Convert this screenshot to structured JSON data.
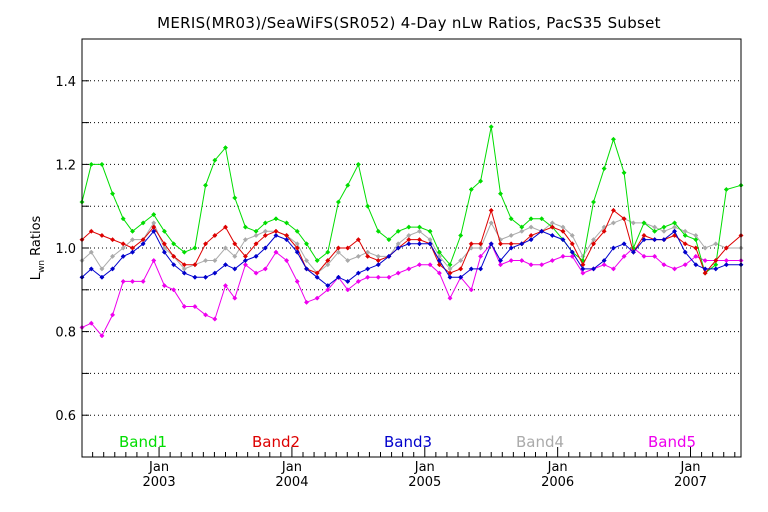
{
  "chart_data": {
    "type": "line",
    "title": "MERIS(MR03)/SeaWiFS(SR052) 4-Day nLw Ratios, PacS35 Subset",
    "ylabel_main": "L",
    "ylabel_sub": "wn",
    "ylabel_rest": " Ratios",
    "xlim": [
      2002.42,
      2007.38
    ],
    "ylim": [
      0.5,
      1.5
    ],
    "yticks": [
      {
        "value": 0.6,
        "label": "0.6"
      },
      {
        "value": 0.8,
        "label": "0.8"
      },
      {
        "value": 1.0,
        "label": "1.0"
      },
      {
        "value": 1.2,
        "label": "1.2"
      },
      {
        "value": 1.4,
        "label": "1.4"
      }
    ],
    "grid_y": [
      0.6,
      0.7,
      0.8,
      0.9,
      1.0,
      1.1,
      1.2,
      1.3,
      1.4
    ],
    "xticks": [
      {
        "value": 2003.0,
        "month": "Jan",
        "year": "2003"
      },
      {
        "value": 2004.0,
        "month": "Jan",
        "year": "2004"
      },
      {
        "value": 2005.0,
        "month": "Jan",
        "year": "2005"
      },
      {
        "value": 2006.0,
        "month": "Jan",
        "year": "2006"
      },
      {
        "value": 2007.0,
        "month": "Jan",
        "year": "2007"
      }
    ],
    "x": [
      2002.42,
      2002.49,
      2002.57,
      2002.65,
      2002.73,
      2002.8,
      2002.88,
      2002.96,
      2003.04,
      2003.11,
      2003.19,
      2003.27,
      2003.35,
      2003.42,
      2003.5,
      2003.57,
      2003.65,
      2003.73,
      2003.8,
      2003.88,
      2003.96,
      2004.04,
      2004.11,
      2004.19,
      2004.27,
      2004.35,
      2004.42,
      2004.5,
      2004.57,
      2004.65,
      2004.73,
      2004.8,
      2004.88,
      2004.96,
      2005.04,
      2005.11,
      2005.19,
      2005.27,
      2005.35,
      2005.42,
      2005.5,
      2005.57,
      2005.65,
      2005.73,
      2005.8,
      2005.88,
      2005.96,
      2006.04,
      2006.11,
      2006.19,
      2006.27,
      2006.35,
      2006.42,
      2006.5,
      2006.57,
      2006.65,
      2006.73,
      2006.8,
      2006.88,
      2006.96,
      2007.04,
      2007.11,
      2007.19,
      2007.27,
      2007.38
    ],
    "series": [
      {
        "name": "Band1",
        "color": "#00dd00",
        "values": [
          1.11,
          1.2,
          1.2,
          1.13,
          1.07,
          1.04,
          1.06,
          1.08,
          1.04,
          1.01,
          0.99,
          1.0,
          1.15,
          1.21,
          1.24,
          1.12,
          1.05,
          1.04,
          1.06,
          1.07,
          1.06,
          1.04,
          1.01,
          0.97,
          0.99,
          1.11,
          1.15,
          1.2,
          1.1,
          1.04,
          1.02,
          1.04,
          1.05,
          1.05,
          1.04,
          0.99,
          0.96,
          1.03,
          1.14,
          1.16,
          1.29,
          1.13,
          1.07,
          1.05,
          1.07,
          1.07,
          1.05,
          1.02,
          0.99,
          0.97,
          1.11,
          1.19,
          1.26,
          1.18,
          1.0,
          1.06,
          1.04,
          1.05,
          1.06,
          1.03,
          1.02,
          0.94,
          0.96,
          1.14,
          1.15
        ]
      },
      {
        "name": "Band2",
        "color": "#dd0000",
        "values": [
          1.02,
          1.04,
          1.03,
          1.02,
          1.01,
          1.0,
          1.02,
          1.05,
          1.01,
          0.98,
          0.96,
          0.96,
          1.01,
          1.03,
          1.05,
          1.01,
          0.98,
          1.01,
          1.03,
          1.04,
          1.03,
          1.0,
          0.95,
          0.94,
          0.97,
          1.0,
          1.0,
          1.02,
          0.98,
          0.97,
          0.98,
          1.0,
          1.02,
          1.02,
          1.01,
          0.96,
          0.94,
          0.95,
          1.01,
          1.01,
          1.09,
          1.01,
          1.01,
          1.01,
          1.03,
          1.04,
          1.05,
          1.04,
          1.01,
          0.96,
          1.01,
          1.04,
          1.09,
          1.07,
          0.99,
          1.03,
          1.02,
          1.02,
          1.03,
          1.01,
          1.0,
          0.94,
          0.97,
          1.0,
          1.03
        ]
      },
      {
        "name": "Band3",
        "color": "#0000cc",
        "values": [
          0.93,
          0.95,
          0.93,
          0.95,
          0.98,
          0.99,
          1.01,
          1.04,
          0.99,
          0.96,
          0.94,
          0.93,
          0.93,
          0.94,
          0.96,
          0.95,
          0.97,
          0.98,
          1.0,
          1.03,
          1.02,
          0.99,
          0.95,
          0.93,
          0.91,
          0.93,
          0.92,
          0.94,
          0.95,
          0.96,
          0.98,
          1.0,
          1.01,
          1.01,
          1.01,
          0.97,
          0.93,
          0.93,
          0.95,
          0.95,
          1.01,
          0.97,
          1.0,
          1.01,
          1.02,
          1.04,
          1.03,
          1.02,
          0.99,
          0.95,
          0.95,
          0.97,
          1.0,
          1.01,
          0.99,
          1.02,
          1.02,
          1.02,
          1.04,
          0.99,
          0.96,
          0.95,
          0.95,
          0.96,
          0.96
        ]
      },
      {
        "name": "Band4",
        "color": "#aaaaaa",
        "values": [
          0.97,
          0.99,
          0.95,
          0.98,
          1.0,
          1.02,
          1.02,
          1.06,
          1.0,
          0.98,
          0.95,
          0.96,
          0.97,
          0.97,
          1.0,
          0.98,
          1.02,
          1.03,
          1.04,
          1.04,
          1.03,
          1.01,
          0.97,
          0.94,
          0.96,
          0.99,
          0.97,
          0.98,
          0.99,
          0.98,
          0.98,
          1.01,
          1.03,
          1.04,
          1.02,
          0.98,
          0.95,
          0.97,
          1.0,
          1.0,
          1.06,
          1.02,
          1.03,
          1.04,
          1.05,
          1.04,
          1.06,
          1.05,
          1.03,
          0.98,
          1.02,
          1.05,
          1.06,
          1.07,
          1.06,
          1.06,
          1.05,
          1.04,
          1.05,
          1.04,
          1.03,
          1.0,
          1.01,
          1.0,
          1.0
        ]
      },
      {
        "name": "Band5",
        "color": "#ee00ee",
        "values": [
          0.81,
          0.82,
          0.79,
          0.84,
          0.92,
          0.92,
          0.92,
          0.97,
          0.91,
          0.9,
          0.86,
          0.86,
          0.84,
          0.83,
          0.91,
          0.88,
          0.96,
          0.94,
          0.95,
          0.99,
          0.97,
          0.92,
          0.87,
          0.88,
          0.9,
          0.93,
          0.9,
          0.92,
          0.93,
          0.93,
          0.93,
          0.94,
          0.95,
          0.96,
          0.96,
          0.94,
          0.88,
          0.93,
          0.9,
          0.98,
          1.01,
          0.96,
          0.97,
          0.97,
          0.96,
          0.96,
          0.97,
          0.98,
          0.98,
          0.94,
          0.95,
          0.96,
          0.95,
          0.98,
          1.0,
          0.98,
          0.98,
          0.96,
          0.95,
          0.96,
          0.98,
          0.97,
          0.97,
          0.97,
          0.97
        ]
      }
    ],
    "legend": [
      {
        "label": "Band1",
        "color": "#00dd00"
      },
      {
        "label": "Band2",
        "color": "#dd0000"
      },
      {
        "label": "Band3",
        "color": "#0000cc"
      },
      {
        "label": "Band4",
        "color": "#aaaaaa"
      },
      {
        "label": "Band5",
        "color": "#ee00ee"
      }
    ],
    "legend_placement": "bottom-inside",
    "grid": true
  }
}
